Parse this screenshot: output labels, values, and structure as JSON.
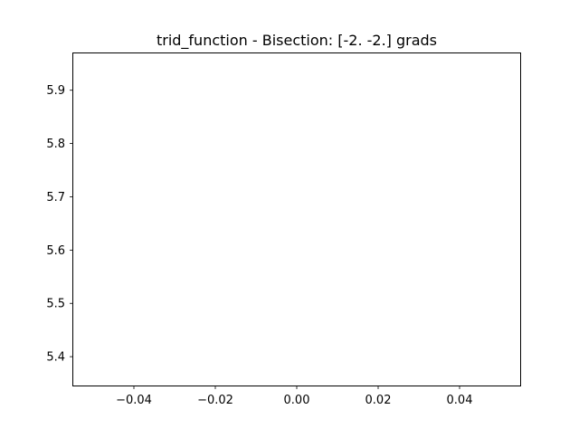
{
  "chart_data": {
    "type": "line",
    "title": "trid_function - Bisection: [-2. -2.] grads",
    "xlabel": "",
    "ylabel": "",
    "xlim": [
      -0.055,
      0.055
    ],
    "ylim": [
      5.345,
      5.97
    ],
    "xticks": [
      -0.04,
      -0.02,
      0.0,
      0.02,
      0.04
    ],
    "xtick_labels": [
      "−0.04",
      "−0.02",
      "0.00",
      "0.02",
      "0.04"
    ],
    "yticks": [
      5.4,
      5.5,
      5.6,
      5.7,
      5.8,
      5.9
    ],
    "ytick_labels": [
      "5.4",
      "5.5",
      "5.6",
      "5.7",
      "5.8",
      "5.9"
    ],
    "grid": false,
    "series": []
  }
}
